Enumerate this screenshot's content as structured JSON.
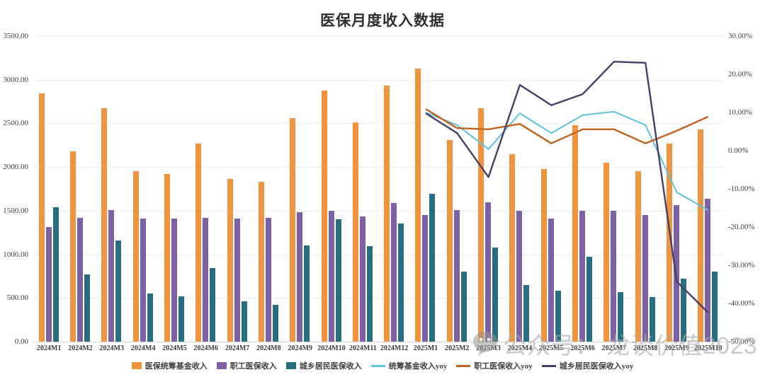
{
  "title": "医保月度收入数据",
  "watermark": {
    "icon": "wechat-chat-bubble-icon",
    "text": "公众号： 龙谈价值2023"
  },
  "colors": {
    "bar_orange": "#F0943F",
    "bar_purple": "#7E60A5",
    "bar_teal": "#266E80",
    "line_blue": "#5EC3DD",
    "line_dark_orange": "#C2611F",
    "line_navy": "#443E68",
    "gridline": "#EDEDED",
    "axis_line": "#D6D6D6",
    "tick_text": "#3F3F3F"
  },
  "chart_data": {
    "type": "bar",
    "subtype": "clustered-bars-with-yoy-lines",
    "title": "医保月度收入数据",
    "xlabel": "",
    "ylabel": "",
    "grid": true,
    "legend_position": "bottom",
    "categories": [
      "2024M1",
      "2024M2",
      "2024M3",
      "2024M4",
      "2024M5",
      "2024M6",
      "2024M7",
      "2024M8",
      "2024M9",
      "2024M10",
      "2024M11",
      "2024M12",
      "2025M1",
      "2025M2",
      "2025M3",
      "2025M4",
      "2025M5",
      "2025M6",
      "2025M7",
      "2025M8",
      "2025M9",
      "2025M10"
    ],
    "bar_series": [
      {
        "name": "医保统筹基金收入",
        "color": "#F0943F",
        "values": [
          2840,
          2180,
          2670,
          1950,
          1920,
          2270,
          1860,
          1830,
          2560,
          2880,
          2510,
          2930,
          3130,
          2310,
          2670,
          2150,
          1980,
          2480,
          2050,
          1950,
          2270,
          2430
        ]
      },
      {
        "name": "职工医保收入",
        "color": "#7E60A5",
        "values": [
          1310,
          1420,
          1510,
          1410,
          1410,
          1420,
          1410,
          1420,
          1480,
          1500,
          1430,
          1590,
          1450,
          1510,
          1600,
          1500,
          1410,
          1500,
          1500,
          1450,
          1560,
          1640
        ]
      },
      {
        "name": "城乡居民医保收入",
        "color": "#266E80",
        "values": [
          1540,
          770,
          1160,
          550,
          520,
          840,
          460,
          420,
          1100,
          1400,
          1090,
          1350,
          1690,
          800,
          1080,
          650,
          580,
          970,
          570,
          510,
          720,
          800
        ]
      }
    ],
    "line_series": [
      {
        "name": "统筹基金收入yoy",
        "color": "#5EC3DD",
        "axis": "right",
        "width": 2,
        "start_category": "2025M1",
        "values": [
          10.0,
          6.7,
          0.4,
          9.8,
          4.6,
          9.3,
          10.2,
          6.7,
          -10.9,
          -15.6
        ]
      },
      {
        "name": "职工医保收入yoy",
        "color": "#C2611F",
        "axis": "right",
        "width": 2.4,
        "start_category": "2025M1",
        "values": [
          10.9,
          5.9,
          5.6,
          7.0,
          1.9,
          5.6,
          5.6,
          1.9,
          5.2,
          8.9
        ]
      },
      {
        "name": "城乡居民医保收入yoy",
        "color": "#443E68",
        "axis": "right",
        "width": 2.4,
        "start_category": "2025M1",
        "values": [
          9.8,
          4.6,
          -6.9,
          17.2,
          11.9,
          14.8,
          23.3,
          23.0,
          -34.3,
          -42.4
        ]
      }
    ],
    "left_axis": {
      "min": 0,
      "max": 3500,
      "step": 500,
      "labels": [
        "3500.00",
        "3000.00",
        "2500.00",
        "2000.00",
        "1500.00",
        "1000.00",
        "500.00",
        "0.00"
      ]
    },
    "right_axis": {
      "min": -50,
      "max": 30,
      "step": 10,
      "labels": [
        "30.00%",
        "20.00%",
        "10.00%",
        "0.00%",
        "-10.00%",
        "-20.00%",
        "-30.00%",
        "-40.00%",
        "-50.00%"
      ]
    }
  }
}
